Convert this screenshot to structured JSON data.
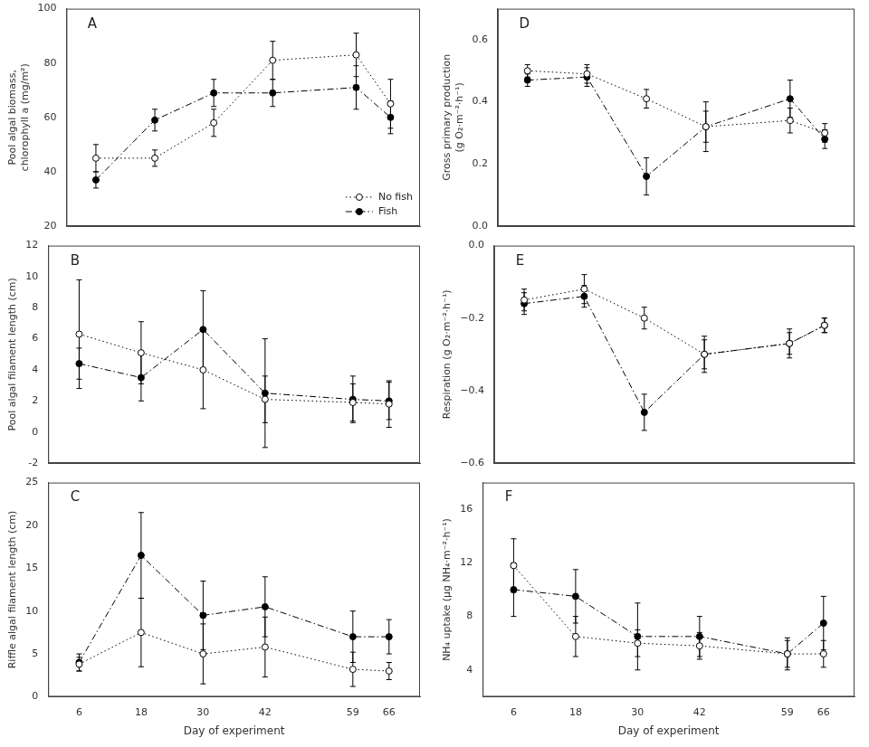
{
  "chart_data": [
    {
      "type": "line",
      "title": "A",
      "ylabel": "Pool algal biomass,\nchlorophyll a (mg/m²)",
      "x": [
        6,
        18,
        30,
        42,
        59,
        66
      ],
      "xlim": [
        0,
        72
      ],
      "xticks": [
        6,
        18,
        30,
        42,
        59,
        66
      ],
      "ylim": [
        20,
        100
      ],
      "yticks": [
        20,
        40,
        60,
        80,
        100
      ],
      "grid": false,
      "tick_labels": "y",
      "legend": "lower right",
      "series": [
        {
          "name": "No fish",
          "color": "#000000",
          "marker": "open_circle",
          "line_style": "dotted",
          "values": [
            45,
            45,
            58,
            81,
            83,
            65
          ],
          "error": [
            5,
            3,
            5,
            7,
            8,
            9
          ]
        },
        {
          "name": "Fish",
          "color": "#000000",
          "marker": "circle",
          "line_style": "dashdot",
          "values": [
            37,
            59,
            69,
            69,
            71,
            60
          ],
          "error": [
            3,
            4,
            5,
            5,
            8,
            6
          ]
        }
      ]
    },
    {
      "type": "line",
      "title": "B",
      "ylabel": "Pool algal filament length (cm)",
      "x": [
        6,
        18,
        30,
        42,
        59,
        66
      ],
      "xlim": [
        0,
        72
      ],
      "xticks": [
        6,
        18,
        30,
        42,
        59,
        66
      ],
      "ylim": [
        -2,
        12
      ],
      "yticks": [
        -2,
        0,
        2,
        4,
        6,
        8,
        10,
        12
      ],
      "grid": false,
      "tick_labels": "y",
      "series": [
        {
          "color": "#000000",
          "marker": "open_circle",
          "line_style": "dotted",
          "values": [
            6.3,
            5.1,
            4.0,
            2.1,
            1.9,
            1.8
          ],
          "error": [
            3.5,
            2.0,
            2.5,
            1.5,
            1.2,
            1.5
          ]
        },
        {
          "color": "#000000",
          "marker": "circle",
          "line_style": "dashdot",
          "values": [
            4.4,
            3.5,
            6.6,
            2.5,
            2.1,
            2.0
          ],
          "error": [
            1.0,
            1.5,
            2.5,
            3.5,
            1.5,
            1.2
          ]
        }
      ]
    },
    {
      "type": "line",
      "title": "C",
      "ylabel": "Riffle algal filament length (cm)",
      "xlabel": "Day of experiment",
      "x": [
        6,
        18,
        30,
        42,
        59,
        66
      ],
      "xlim": [
        0,
        72
      ],
      "xticks": [
        6,
        18,
        30,
        42,
        59,
        66
      ],
      "ylim": [
        0,
        25
      ],
      "yticks": [
        0,
        5,
        10,
        15,
        20,
        25
      ],
      "grid": false,
      "series": [
        {
          "color": "#000000",
          "marker": "open_circle",
          "line_style": "dotted",
          "values": [
            3.8,
            7.5,
            5.0,
            5.8,
            3.2,
            3.0
          ],
          "error": [
            0.8,
            4.0,
            3.5,
            3.5,
            2.0,
            1.0
          ]
        },
        {
          "color": "#000000",
          "marker": "circle",
          "line_style": "dashdot",
          "values": [
            4.0,
            16.5,
            9.5,
            10.5,
            7.0,
            7.0
          ],
          "error": [
            1.0,
            5.0,
            4.0,
            3.5,
            3.0,
            2.0
          ]
        }
      ]
    },
    {
      "type": "line",
      "title": "D",
      "ylabel": "Gross primary production\n(g O₂·m⁻²·h⁻¹)",
      "x": [
        6,
        18,
        30,
        42,
        59,
        66
      ],
      "xlim": [
        0,
        72
      ],
      "xticks": [
        6,
        18,
        30,
        42,
        59,
        66
      ],
      "ylim": [
        0.0,
        0.7
      ],
      "yticks": [
        {
          "value": 0.0,
          "label": "0.0"
        },
        0.2,
        0.4,
        0.6
      ],
      "grid": false,
      "tick_labels": "y",
      "series": [
        {
          "color": "#000000",
          "marker": "open_circle",
          "line_style": "dotted",
          "values": [
            0.5,
            0.49,
            0.41,
            0.32,
            0.34,
            0.3
          ],
          "error": [
            0.02,
            0.03,
            0.03,
            0.05,
            0.04,
            0.03
          ]
        },
        {
          "color": "#000000",
          "marker": "circle",
          "line_style": "dashdot",
          "values": [
            0.47,
            0.48,
            0.16,
            0.32,
            0.41,
            0.28
          ],
          "error": [
            0.02,
            0.03,
            0.06,
            0.08,
            0.06,
            0.03
          ]
        }
      ]
    },
    {
      "type": "line",
      "title": "E",
      "ylabel": "Respiration (g O₂·m⁻²·h⁻¹)",
      "x": [
        6,
        18,
        30,
        42,
        59,
        66
      ],
      "xlim": [
        0,
        72
      ],
      "xticks": [
        6,
        18,
        30,
        42,
        59,
        66
      ],
      "ylim": [
        -0.6,
        0.0
      ],
      "yticks": [
        {
          "value": 0.0,
          "label": "0.0"
        },
        {
          "value": -0.2,
          "label": "−0.2"
        },
        {
          "value": -0.4,
          "label": "−0.4"
        },
        {
          "value": -0.6,
          "label": "−0.6"
        }
      ],
      "grid": false,
      "tick_labels": "y",
      "series": [
        {
          "color": "#000000",
          "marker": "open_circle",
          "line_style": "dotted",
          "values": [
            -0.15,
            -0.12,
            -0.2,
            -0.3,
            -0.27,
            -0.22
          ],
          "error": [
            0.03,
            0.04,
            0.03,
            0.04,
            0.04,
            0.02
          ]
        },
        {
          "color": "#000000",
          "marker": "circle",
          "line_style": "dashdot",
          "values": [
            -0.16,
            -0.14,
            -0.46,
            -0.3,
            -0.27,
            -0.22
          ],
          "error": [
            0.03,
            0.03,
            0.05,
            0.05,
            0.03,
            0.02
          ]
        }
      ]
    },
    {
      "type": "line",
      "title": "F",
      "ylabel": "NH₄ uptake (μg NH₄·m⁻²·h⁻¹)",
      "xlabel": "Day of experiment",
      "x": [
        6,
        18,
        30,
        42,
        59,
        66
      ],
      "xlim": [
        0,
        72
      ],
      "xticks": [
        6,
        18,
        30,
        42,
        59,
        66
      ],
      "ylim": [
        2,
        18
      ],
      "yticks": [
        4,
        8,
        12,
        16
      ],
      "grid": false,
      "series": [
        {
          "color": "#000000",
          "marker": "open_circle",
          "line_style": "dotted",
          "values": [
            11.8,
            6.5,
            6.0,
            5.8,
            5.2,
            5.2
          ],
          "error": [
            2.0,
            1.5,
            1.0,
            1.0,
            1.0,
            1.0
          ]
        },
        {
          "color": "#000000",
          "marker": "circle",
          "line_style": "dashdot",
          "values": [
            10.0,
            9.5,
            6.5,
            6.5,
            5.2,
            7.5
          ],
          "error": [
            2.0,
            2.0,
            2.5,
            1.5,
            1.2,
            2.0
          ]
        }
      ]
    }
  ]
}
